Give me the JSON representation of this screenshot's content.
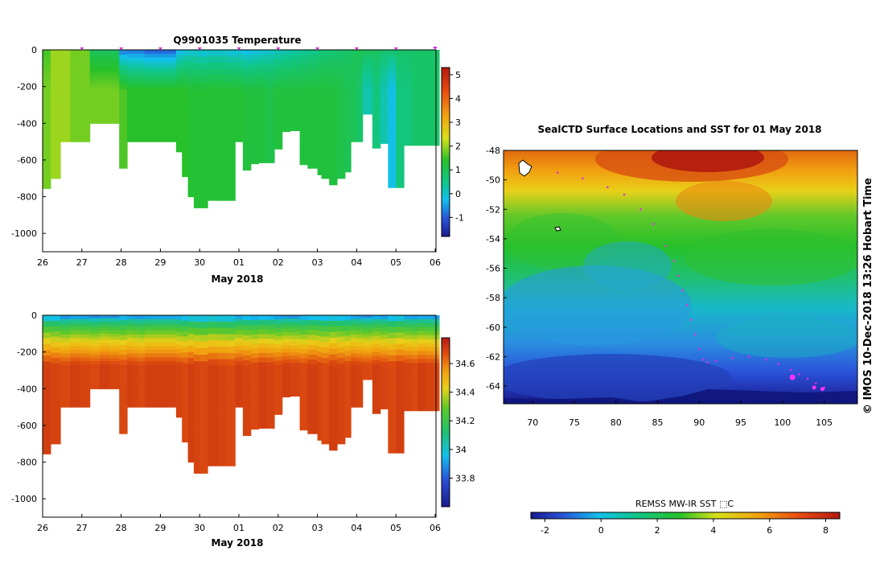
{
  "chart_data": [
    {
      "type": "heatmap",
      "title": "Q9901035  Temperature",
      "xlabel": "May 2018",
      "ylabel": "",
      "x_ticks": [
        "26",
        "27",
        "28",
        "29",
        "30",
        "01",
        "02",
        "03",
        "04",
        "05",
        "06"
      ],
      "y_ticks": [
        0,
        -200,
        -400,
        -600,
        -800,
        -1000
      ],
      "ylim": [
        -1100,
        0
      ],
      "colorbar": {
        "ticks": [
          5,
          4,
          3,
          2,
          1,
          0,
          -1
        ],
        "range": [
          -1.8,
          5.3
        ]
      },
      "profile_marker_days": [
        27.0,
        28.0,
        29.0,
        30.0,
        31.0,
        32.0,
        33.0,
        34.0,
        35.0,
        36.0
      ],
      "profiles": {
        "day": [
          26.0,
          26.2,
          26.45,
          26.7,
          26.95,
          27.2,
          27.45,
          27.7,
          27.95,
          28.15,
          28.3,
          28.45,
          28.6,
          29.4,
          29.55,
          29.7,
          29.85,
          30.0,
          30.2,
          30.45,
          30.7,
          30.9,
          31.1,
          31.3,
          31.5,
          31.7,
          31.9,
          32.1,
          32.3,
          32.55,
          32.75,
          33.0,
          33.1,
          33.3,
          33.5,
          33.7,
          33.85,
          34.0,
          34.15,
          34.4,
          34.6,
          34.8,
          35.0,
          35.2,
          35.4,
          35.55,
          35.75,
          35.95
        ],
        "max_depth": [
          755,
          700,
          500,
          500,
          500,
          400,
          400,
          400,
          645,
          500,
          500,
          500,
          500,
          555,
          690,
          800,
          860,
          860,
          820,
          820,
          820,
          500,
          655,
          620,
          615,
          615,
          540,
          445,
          440,
          625,
          645,
          680,
          700,
          735,
          700,
          665,
          500,
          500,
          350,
          535,
          510,
          750,
          750,
          520,
          520,
          520,
          520,
          520
        ],
        "surface_temp": [
          1.5,
          2,
          2,
          1.8,
          1.8,
          0.8,
          0.8,
          0.8,
          -1,
          -1,
          -1,
          -1,
          -1.2,
          -0.5,
          -0.3,
          -0.2,
          -0.2,
          -0.3,
          -0.2,
          -0.2,
          -0.3,
          -0.3,
          -0.4,
          -0.3,
          -0.2,
          -0.1,
          0,
          0.1,
          0.2,
          0.3,
          0.4,
          0.5,
          0.6,
          0.6,
          0.7,
          0.8,
          0.9,
          1.0,
          1.0,
          0.9,
          0.8,
          0.8,
          0.8,
          0.8,
          0.8,
          0.8,
          0.8,
          0.8
        ],
        "deep_temp": [
          1.8,
          2,
          2,
          1.8,
          1.8,
          1.8,
          1.8,
          1.8,
          1.6,
          1.4,
          1.4,
          1.4,
          1.4,
          1.4,
          1.4,
          1.3,
          1.3,
          1.3,
          1.3,
          1.3,
          1.3,
          1.3,
          1.2,
          1.2,
          1.2,
          1.1,
          1.2,
          1.2,
          1.2,
          1.2,
          1.2,
          1.2,
          1.2,
          1.2,
          1.1,
          1.0,
          1.0,
          0.8,
          0.2,
          0.6,
          0.2,
          -0.2,
          0.6,
          0.6,
          0.8,
          0.8,
          0.8,
          0.8
        ]
      }
    },
    {
      "type": "heatmap",
      "title": "",
      "xlabel": "May 2018",
      "ylabel": "",
      "x_ticks": [
        "26",
        "27",
        "28",
        "29",
        "30",
        "01",
        "02",
        "03",
        "04",
        "05",
        "06"
      ],
      "y_ticks": [
        0,
        -200,
        -400,
        -600,
        -800,
        -1000
      ],
      "ylim": [
        -1100,
        0
      ],
      "colorbar": {
        "ticks": [
          34.6,
          34.4,
          34.2,
          34,
          33.8
        ],
        "range": [
          33.6,
          34.78
        ]
      },
      "profiles": {
        "surface_salinity": 33.9,
        "deep_salinity": 34.7,
        "halocline_depth_m": 60
      }
    },
    {
      "type": "heatmap",
      "title": "SealCTD Surface Locations and SST for 01 May 2018",
      "xlabel": "",
      "ylabel": "",
      "x_ticks": [
        70,
        75,
        80,
        85,
        90,
        95,
        100,
        105
      ],
      "y_ticks": [
        -48,
        -50,
        -52,
        -54,
        -56,
        -58,
        -60,
        -62,
        -64
      ],
      "xlim": [
        66.5,
        109
      ],
      "ylim": [
        -65.2,
        -48
      ],
      "colorbar": {
        "label": "REMSS MW-IR SST ⬚C",
        "ticks": [
          -2,
          0,
          2,
          4,
          6,
          8
        ],
        "range": [
          -2.5,
          8.5
        ]
      },
      "track_positions": {
        "lon": [
          73,
          76,
          79,
          81,
          83,
          84.5,
          86,
          87,
          87.5,
          88,
          88.5,
          89,
          89.5,
          90,
          90.5,
          91,
          92,
          94,
          96,
          98,
          99.5,
          101,
          102,
          103,
          104,
          105
        ],
        "lat": [
          -49.5,
          -49.9,
          -50.5,
          -51,
          -52,
          -53,
          -54.5,
          -55.5,
          -56.5,
          -57.5,
          -58.5,
          -59.5,
          -60.5,
          -61.5,
          -62.2,
          -62.4,
          -62.3,
          -62.1,
          -62,
          -62.2,
          -62.5,
          -62.9,
          -63.2,
          -63.5,
          -63.8,
          -64.1
        ]
      },
      "current_positions": {
        "lon": [
          101.2,
          103.8,
          104.8
        ],
        "lat": [
          -63.4,
          -64.1,
          -64.2
        ]
      },
      "stamp": "© IMOS 10-Dec-2018 13:26 Hobart Time"
    }
  ]
}
